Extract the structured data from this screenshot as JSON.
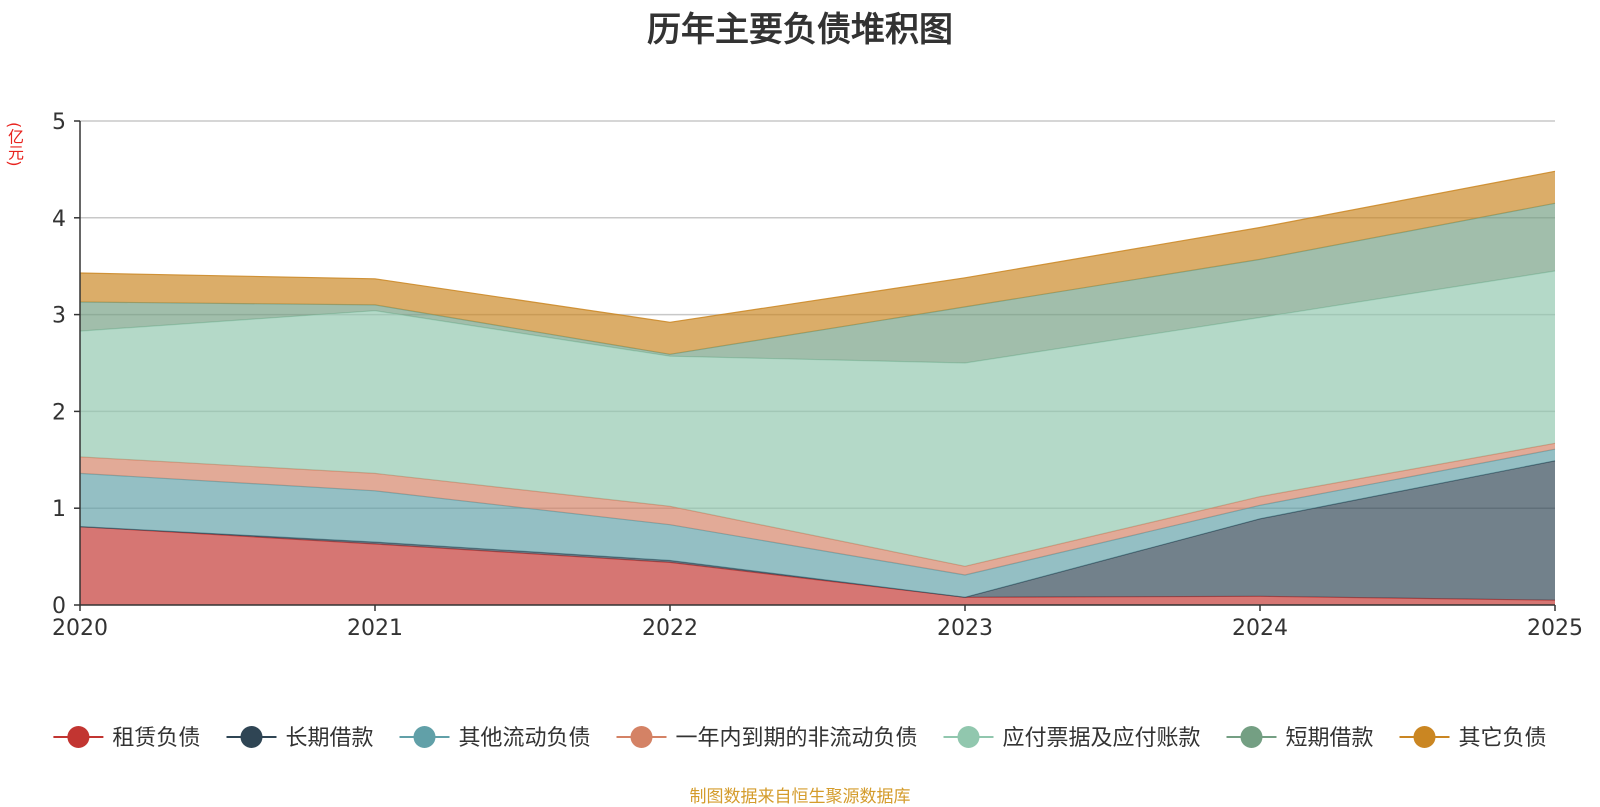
{
  "chart_data": {
    "type": "area",
    "stacked": true,
    "title": "历年主要负债堆积图",
    "ylabel": "(亿元)",
    "ylim": [
      0,
      5
    ],
    "yticks": [
      0,
      1,
      2,
      3,
      4,
      5
    ],
    "x": [
      "2020",
      "2021",
      "2022",
      "2023",
      "2024",
      "2025"
    ],
    "grid": true,
    "legend_position": "bottom",
    "series": [
      {
        "name": "租赁负债",
        "color": "#c23531",
        "values": [
          0.81,
          0.63,
          0.44,
          0.08,
          0.09,
          0.05
        ]
      },
      {
        "name": "长期借款",
        "color": "#2f4554",
        "values": [
          0.0,
          0.02,
          0.02,
          0.0,
          0.8,
          1.44
        ]
      },
      {
        "name": "其他流动负债",
        "color": "#61a0a8",
        "values": [
          0.55,
          0.53,
          0.37,
          0.23,
          0.14,
          0.12
        ]
      },
      {
        "name": "一年内到期的非流动负债",
        "color": "#d48265",
        "values": [
          0.17,
          0.18,
          0.19,
          0.09,
          0.09,
          0.06
        ]
      },
      {
        "name": "应付票据及应付账款",
        "color": "#91c7ae",
        "values": [
          1.3,
          1.68,
          1.55,
          2.1,
          1.85,
          1.78
        ]
      },
      {
        "name": "短期借款",
        "color": "#749f83",
        "values": [
          0.3,
          0.06,
          0.02,
          0.58,
          0.6,
          0.7
        ]
      },
      {
        "name": "其它负债",
        "color": "#ca8622",
        "values": [
          0.3,
          0.27,
          0.33,
          0.3,
          0.33,
          0.33
        ]
      }
    ]
  },
  "footer": {
    "source": "制图数据来自恒生聚源数据库"
  }
}
